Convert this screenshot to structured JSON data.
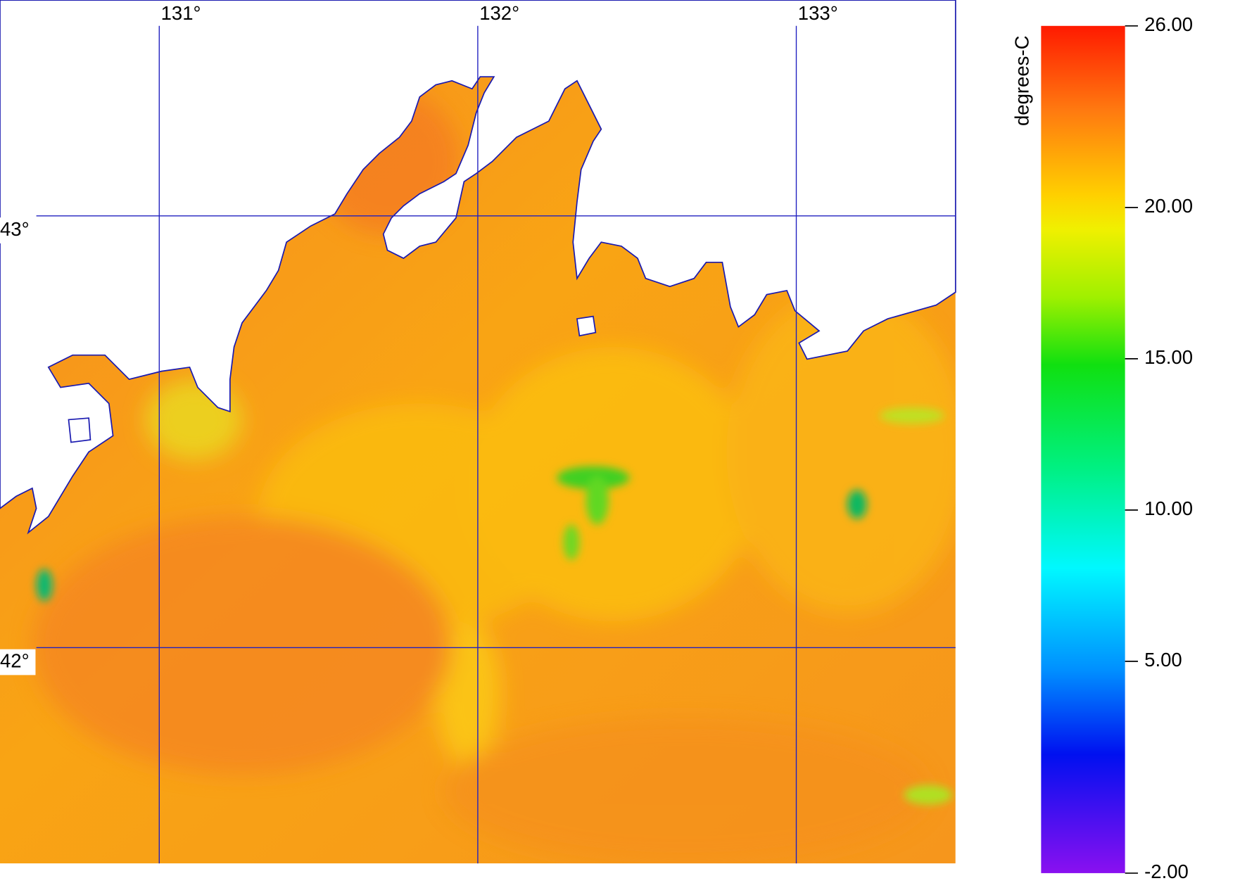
{
  "chart_data": {
    "type": "map",
    "xlim": [
      130.5,
      133.5
    ],
    "ylim": [
      41.5,
      43.5
    ],
    "xticks": [
      {
        "value": 131,
        "label": "131°"
      },
      {
        "value": 132,
        "label": "132°"
      },
      {
        "value": 133,
        "label": "133°"
      }
    ],
    "yticks": [
      {
        "value": 42,
        "label": "42°"
      },
      {
        "value": 43,
        "label": "43°"
      }
    ],
    "grid": true,
    "grid_color": "#2020c0",
    "colorbar": {
      "label": "degrees-C",
      "lim": [
        -2,
        26
      ],
      "ticks": [
        {
          "value": 26,
          "label": "26.00"
        },
        {
          "value": 20,
          "label": "20.00"
        },
        {
          "value": 15,
          "label": "15.00"
        },
        {
          "value": 10,
          "label": "10.00"
        },
        {
          "value": 5,
          "label": "5.00"
        },
        {
          "value": -2,
          "label": "-2.00"
        }
      ]
    }
  }
}
